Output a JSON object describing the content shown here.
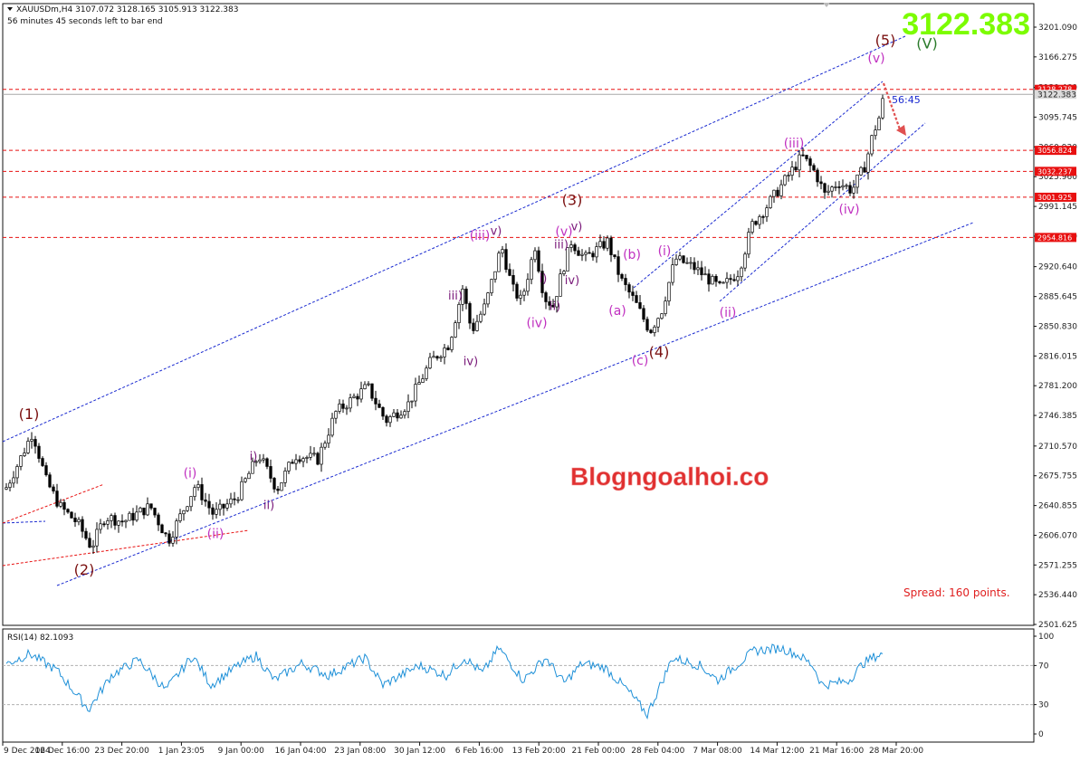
{
  "header": {
    "symbol_line": "XAUUSDm,H4  3107.072 3128.165 3105.913 3122.383",
    "countdown": "56 minutes 45 seconds left to bar end"
  },
  "big_price": "3122.383",
  "watermark": "Blogngoalhoi.co",
  "spread_text": "Spread: 160 points.",
  "timer_text": "56:45",
  "colors": {
    "candle": "#000000",
    "channel": "#1a2ad0",
    "level": "#e81010",
    "rsi": "#1e90d8",
    "big_price": "#7cfc00",
    "watermark": "#e03030",
    "wave_main": "#7a1010",
    "wave_sub": "#c030c0",
    "wave_v": "#2a7a2a"
  },
  "chart_data": [
    {
      "type": "candlestick",
      "title": "XAUUSDm,H4",
      "y_ticks": [
        "3201.090",
        "3166.275",
        "3130.460",
        "3095.745",
        "3060.930",
        "3025.960",
        "2991.145",
        "2956.330",
        "2920.640",
        "2885.645",
        "2850.830",
        "2816.015",
        "2781.200",
        "2746.385",
        "2710.570",
        "2675.755",
        "2640.855",
        "2606.070",
        "2571.255",
        "2536.440",
        "2501.625"
      ],
      "ylim": [
        2501.625,
        3226
      ],
      "x_ticks": [
        "9 Dec 2024",
        "16 Dec 16:00",
        "23 Dec 20:00",
        "1 Jan 23:05",
        "9 Jan 00:00",
        "16 Jan 04:00",
        "23 Jan 08:00",
        "30 Jan 12:00",
        "6 Feb 16:00",
        "13 Feb 20:00",
        "21 Feb 00:00",
        "28 Feb 04:00",
        "7 Mar 08:00",
        "14 Mar 12:00",
        "21 Mar 16:00",
        "28 Mar 20:00"
      ],
      "price_levels": [
        {
          "value": 3128.278,
          "label": "3128.278"
        },
        {
          "value": 3056.824,
          "label": "3056.824"
        },
        {
          "value": 3032.237,
          "label": "3032.237"
        },
        {
          "value": 3001.925,
          "label": "3001.925"
        },
        {
          "value": 2954.816,
          "label": "2954.816"
        }
      ],
      "current_price": {
        "value": 3122.383,
        "label": "3122.383"
      },
      "waypoints": [
        [
          0,
          2660
        ],
        [
          14,
          2690
        ],
        [
          30,
          2727
        ],
        [
          45,
          2670
        ],
        [
          60,
          2640
        ],
        [
          80,
          2620
        ],
        [
          95,
          2592
        ],
        [
          110,
          2628
        ],
        [
          130,
          2622
        ],
        [
          160,
          2640
        ],
        [
          180,
          2600
        ],
        [
          210,
          2665
        ],
        [
          230,
          2630
        ],
        [
          255,
          2650
        ],
        [
          280,
          2700
        ],
        [
          300,
          2660
        ],
        [
          320,
          2700
        ],
        [
          345,
          2695
        ],
        [
          365,
          2750
        ],
        [
          400,
          2780
        ],
        [
          420,
          2740
        ],
        [
          445,
          2760
        ],
        [
          470,
          2810
        ],
        [
          490,
          2830
        ],
        [
          505,
          2895
        ],
        [
          515,
          2845
        ],
        [
          530,
          2875
        ],
        [
          548,
          2945
        ],
        [
          560,
          2895
        ],
        [
          570,
          2880
        ],
        [
          585,
          2945
        ],
        [
          595,
          2885
        ],
        [
          605,
          2875
        ],
        [
          615,
          2915
        ],
        [
          625,
          2950
        ],
        [
          640,
          2930
        ],
        [
          665,
          2950
        ],
        [
          680,
          2905
        ],
        [
          695,
          2880
        ],
        [
          712,
          2845
        ],
        [
          725,
          2870
        ],
        [
          740,
          2930
        ],
        [
          760,
          2920
        ],
        [
          790,
          2895
        ],
        [
          810,
          2915
        ],
        [
          825,
          2970
        ],
        [
          840,
          2990
        ],
        [
          860,
          3020
        ],
        [
          880,
          3050
        ],
        [
          895,
          3030
        ],
        [
          905,
          3005
        ],
        [
          920,
          3020
        ],
        [
          935,
          3010
        ],
        [
          950,
          3040
        ],
        [
          958,
          3075
        ],
        [
          965,
          3095
        ],
        [
          972,
          3128
        ]
      ]
    },
    {
      "type": "line",
      "title": "RSI(14) 82.1093",
      "y_ticks": [
        "100",
        "70",
        "30",
        "0"
      ],
      "ylim": [
        0,
        100
      ],
      "guide_levels": [
        70,
        30
      ],
      "waypoints": [
        [
          0,
          70
        ],
        [
          30,
          82
        ],
        [
          60,
          65
        ],
        [
          95,
          25
        ],
        [
          120,
          60
        ],
        [
          150,
          76
        ],
        [
          180,
          45
        ],
        [
          210,
          80
        ],
        [
          230,
          50
        ],
        [
          260,
          70
        ],
        [
          280,
          80
        ],
        [
          300,
          55
        ],
        [
          330,
          72
        ],
        [
          360,
          60
        ],
        [
          400,
          78
        ],
        [
          420,
          50
        ],
        [
          460,
          70
        ],
        [
          490,
          60
        ],
        [
          510,
          78
        ],
        [
          530,
          62
        ],
        [
          548,
          88
        ],
        [
          575,
          55
        ],
        [
          600,
          78
        ],
        [
          620,
          52
        ],
        [
          640,
          72
        ],
        [
          665,
          68
        ],
        [
          690,
          45
        ],
        [
          712,
          20
        ],
        [
          740,
          78
        ],
        [
          770,
          70
        ],
        [
          790,
          55
        ],
        [
          810,
          70
        ],
        [
          830,
          85
        ],
        [
          860,
          88
        ],
        [
          880,
          80
        ],
        [
          895,
          70
        ],
        [
          905,
          50
        ],
        [
          920,
          52
        ],
        [
          935,
          55
        ],
        [
          950,
          72
        ],
        [
          965,
          80
        ],
        [
          972,
          82
        ]
      ]
    }
  ],
  "wave_labels": {
    "main": [
      {
        "text": "(1)",
        "x": 32,
        "y": 2742
      },
      {
        "text": "(2)",
        "x": 93,
        "y": 2560
      },
      {
        "text": "(3)",
        "x": 632,
        "y": 2993
      },
      {
        "text": "(4)",
        "x": 728,
        "y": 2815
      },
      {
        "text": "(5)",
        "x": 978,
        "y": 3180
      }
    ],
    "sub": [
      {
        "text": "(i)",
        "x": 210,
        "y": 2674
      },
      {
        "text": "(ii)",
        "x": 238,
        "y": 2603
      },
      {
        "text": "(iii)",
        "x": 530,
        "y": 2952
      },
      {
        "text": "(iv)",
        "x": 593,
        "y": 2850
      },
      {
        "text": "(v)",
        "x": 623,
        "y": 2957
      },
      {
        "text": "(a)",
        "x": 682,
        "y": 2864
      },
      {
        "text": "(b)",
        "x": 698,
        "y": 2930
      },
      {
        "text": "(c)",
        "x": 707,
        "y": 2806
      },
      {
        "text": "(i)",
        "x": 734,
        "y": 2934
      },
      {
        "text": "(ii)",
        "x": 804,
        "y": 2862
      },
      {
        "text": "(iii)",
        "x": 877,
        "y": 3060
      },
      {
        "text": "(iv)",
        "x": 938,
        "y": 2983
      },
      {
        "text": "(v)",
        "x": 968,
        "y": 3160
      }
    ],
    "minor": [
      {
        "text": "i)",
        "x": 280,
        "y": 2694
      },
      {
        "text": "ii)",
        "x": 297,
        "y": 2637
      },
      {
        "text": "iii)",
        "x": 503,
        "y": 2882
      },
      {
        "text": "iv)",
        "x": 520,
        "y": 2805
      },
      {
        "text": "v)",
        "x": 548,
        "y": 2958
      },
      {
        "text": "i)",
        "x": 600,
        "y": 2902
      },
      {
        "text": "ii)",
        "x": 613,
        "y": 2870
      },
      {
        "text": "iii)",
        "x": 620,
        "y": 2942
      },
      {
        "text": "iv)",
        "x": 632,
        "y": 2900
      },
      {
        "text": "v)",
        "x": 637,
        "y": 2963
      }
    ],
    "major": {
      "text": "(V)",
      "x": 1024,
      "y": 3176
    }
  }
}
